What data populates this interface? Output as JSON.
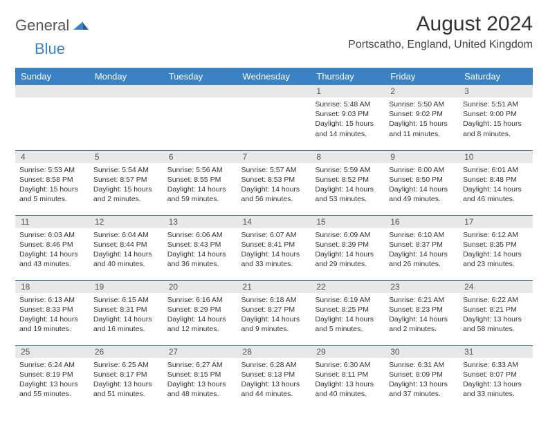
{
  "brand": {
    "part1": "General",
    "part2": "Blue"
  },
  "title": "August 2024",
  "location": "Portscatho, England, United Kingdom",
  "colors": {
    "header_bg": "#3b82c4",
    "header_text": "#ffffff",
    "daynum_bg": "#e8e8e8",
    "row_border": "#2a5a8a",
    "text": "#333333"
  },
  "dow": [
    "Sunday",
    "Monday",
    "Tuesday",
    "Wednesday",
    "Thursday",
    "Friday",
    "Saturday"
  ],
  "weeks": [
    [
      {
        "n": "",
        "lines": []
      },
      {
        "n": "",
        "lines": []
      },
      {
        "n": "",
        "lines": []
      },
      {
        "n": "",
        "lines": []
      },
      {
        "n": "1",
        "lines": [
          "Sunrise: 5:48 AM",
          "Sunset: 9:03 PM",
          "Daylight: 15 hours and 14 minutes."
        ]
      },
      {
        "n": "2",
        "lines": [
          "Sunrise: 5:50 AM",
          "Sunset: 9:02 PM",
          "Daylight: 15 hours and 11 minutes."
        ]
      },
      {
        "n": "3",
        "lines": [
          "Sunrise: 5:51 AM",
          "Sunset: 9:00 PM",
          "Daylight: 15 hours and 8 minutes."
        ]
      }
    ],
    [
      {
        "n": "4",
        "lines": [
          "Sunrise: 5:53 AM",
          "Sunset: 8:58 PM",
          "Daylight: 15 hours and 5 minutes."
        ]
      },
      {
        "n": "5",
        "lines": [
          "Sunrise: 5:54 AM",
          "Sunset: 8:57 PM",
          "Daylight: 15 hours and 2 minutes."
        ]
      },
      {
        "n": "6",
        "lines": [
          "Sunrise: 5:56 AM",
          "Sunset: 8:55 PM",
          "Daylight: 14 hours and 59 minutes."
        ]
      },
      {
        "n": "7",
        "lines": [
          "Sunrise: 5:57 AM",
          "Sunset: 8:53 PM",
          "Daylight: 14 hours and 56 minutes."
        ]
      },
      {
        "n": "8",
        "lines": [
          "Sunrise: 5:59 AM",
          "Sunset: 8:52 PM",
          "Daylight: 14 hours and 53 minutes."
        ]
      },
      {
        "n": "9",
        "lines": [
          "Sunrise: 6:00 AM",
          "Sunset: 8:50 PM",
          "Daylight: 14 hours and 49 minutes."
        ]
      },
      {
        "n": "10",
        "lines": [
          "Sunrise: 6:01 AM",
          "Sunset: 8:48 PM",
          "Daylight: 14 hours and 46 minutes."
        ]
      }
    ],
    [
      {
        "n": "11",
        "lines": [
          "Sunrise: 6:03 AM",
          "Sunset: 8:46 PM",
          "Daylight: 14 hours and 43 minutes."
        ]
      },
      {
        "n": "12",
        "lines": [
          "Sunrise: 6:04 AM",
          "Sunset: 8:44 PM",
          "Daylight: 14 hours and 40 minutes."
        ]
      },
      {
        "n": "13",
        "lines": [
          "Sunrise: 6:06 AM",
          "Sunset: 8:43 PM",
          "Daylight: 14 hours and 36 minutes."
        ]
      },
      {
        "n": "14",
        "lines": [
          "Sunrise: 6:07 AM",
          "Sunset: 8:41 PM",
          "Daylight: 14 hours and 33 minutes."
        ]
      },
      {
        "n": "15",
        "lines": [
          "Sunrise: 6:09 AM",
          "Sunset: 8:39 PM",
          "Daylight: 14 hours and 29 minutes."
        ]
      },
      {
        "n": "16",
        "lines": [
          "Sunrise: 6:10 AM",
          "Sunset: 8:37 PM",
          "Daylight: 14 hours and 26 minutes."
        ]
      },
      {
        "n": "17",
        "lines": [
          "Sunrise: 6:12 AM",
          "Sunset: 8:35 PM",
          "Daylight: 14 hours and 23 minutes."
        ]
      }
    ],
    [
      {
        "n": "18",
        "lines": [
          "Sunrise: 6:13 AM",
          "Sunset: 8:33 PM",
          "Daylight: 14 hours and 19 minutes."
        ]
      },
      {
        "n": "19",
        "lines": [
          "Sunrise: 6:15 AM",
          "Sunset: 8:31 PM",
          "Daylight: 14 hours and 16 minutes."
        ]
      },
      {
        "n": "20",
        "lines": [
          "Sunrise: 6:16 AM",
          "Sunset: 8:29 PM",
          "Daylight: 14 hours and 12 minutes."
        ]
      },
      {
        "n": "21",
        "lines": [
          "Sunrise: 6:18 AM",
          "Sunset: 8:27 PM",
          "Daylight: 14 hours and 9 minutes."
        ]
      },
      {
        "n": "22",
        "lines": [
          "Sunrise: 6:19 AM",
          "Sunset: 8:25 PM",
          "Daylight: 14 hours and 5 minutes."
        ]
      },
      {
        "n": "23",
        "lines": [
          "Sunrise: 6:21 AM",
          "Sunset: 8:23 PM",
          "Daylight: 14 hours and 2 minutes."
        ]
      },
      {
        "n": "24",
        "lines": [
          "Sunrise: 6:22 AM",
          "Sunset: 8:21 PM",
          "Daylight: 13 hours and 58 minutes."
        ]
      }
    ],
    [
      {
        "n": "25",
        "lines": [
          "Sunrise: 6:24 AM",
          "Sunset: 8:19 PM",
          "Daylight: 13 hours and 55 minutes."
        ]
      },
      {
        "n": "26",
        "lines": [
          "Sunrise: 6:25 AM",
          "Sunset: 8:17 PM",
          "Daylight: 13 hours and 51 minutes."
        ]
      },
      {
        "n": "27",
        "lines": [
          "Sunrise: 6:27 AM",
          "Sunset: 8:15 PM",
          "Daylight: 13 hours and 48 minutes."
        ]
      },
      {
        "n": "28",
        "lines": [
          "Sunrise: 6:28 AM",
          "Sunset: 8:13 PM",
          "Daylight: 13 hours and 44 minutes."
        ]
      },
      {
        "n": "29",
        "lines": [
          "Sunrise: 6:30 AM",
          "Sunset: 8:11 PM",
          "Daylight: 13 hours and 40 minutes."
        ]
      },
      {
        "n": "30",
        "lines": [
          "Sunrise: 6:31 AM",
          "Sunset: 8:09 PM",
          "Daylight: 13 hours and 37 minutes."
        ]
      },
      {
        "n": "31",
        "lines": [
          "Sunrise: 6:33 AM",
          "Sunset: 8:07 PM",
          "Daylight: 13 hours and 33 minutes."
        ]
      }
    ]
  ]
}
